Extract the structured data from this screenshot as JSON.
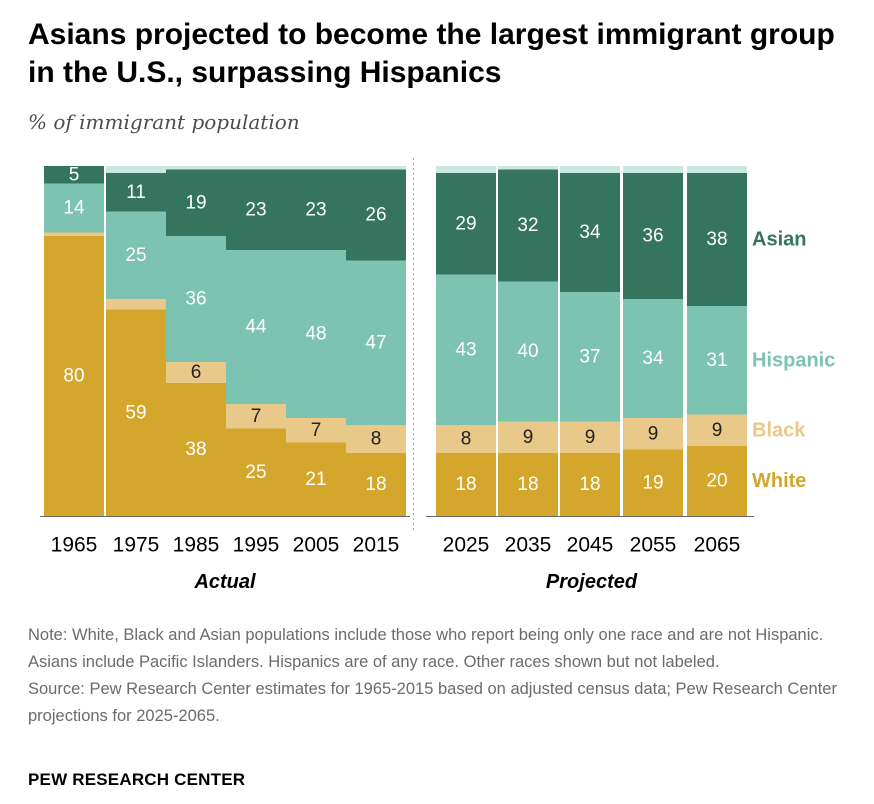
{
  "title": "Asians projected to become the largest immigrant group in the U.S., surpassing Hispanics",
  "subtitle": "% of immigrant population",
  "note": "Note: White, Black and Asian populations include those who report being only one race and are not Hispanic. Asians include Pacific Islanders. Hispanics are of any race. Other races shown but not labeled.",
  "source": "Source: Pew Research Center estimates for 1965-2015 based on adjusted census data; Pew Research Center projections for 2025-2065.",
  "brand": "PEW RESEARCH CENTER",
  "colors": {
    "white": "#d4a72c",
    "black": "#e8c989",
    "hispanic": "#7dc3b2",
    "asian": "#35745f",
    "other": "#c9e8e1",
    "label_light": "#ffffff",
    "label_dark": "#222222"
  },
  "chart_data": {
    "type": "bar",
    "stacked": true,
    "ylim": [
      0,
      100
    ],
    "groups": [
      {
        "label": "Actual",
        "categories": [
          "1965",
          "1975",
          "1985",
          "1995",
          "2005",
          "2015"
        ]
      },
      {
        "label": "Projected",
        "categories": [
          "2025",
          "2035",
          "2045",
          "2055",
          "2065"
        ]
      }
    ],
    "categories": [
      "1965",
      "1975",
      "1985",
      "1995",
      "2005",
      "2015",
      "2025",
      "2035",
      "2045",
      "2055",
      "2065"
    ],
    "series": [
      {
        "name": "White",
        "key": "white",
        "values": [
          80,
          59,
          38,
          25,
          21,
          18,
          18,
          18,
          18,
          19,
          20
        ]
      },
      {
        "name": "Black",
        "key": "black",
        "values": [
          1,
          3,
          6,
          7,
          7,
          8,
          8,
          9,
          9,
          9,
          9
        ]
      },
      {
        "name": "Hispanic",
        "key": "hispanic",
        "values": [
          14,
          25,
          36,
          44,
          48,
          47,
          43,
          40,
          37,
          34,
          31
        ]
      },
      {
        "name": "Asian",
        "key": "asian",
        "values": [
          5,
          11,
          19,
          23,
          23,
          26,
          29,
          32,
          34,
          36,
          38
        ]
      }
    ],
    "value_labels": {
      "White": [
        "80",
        "59",
        "38",
        "25",
        "21",
        "18",
        "18",
        "18",
        "18",
        "19",
        "20"
      ],
      "Black": [
        "",
        "",
        "6",
        "7",
        "7",
        "8",
        "8",
        "9",
        "9",
        "9",
        "9"
      ],
      "Hispanic": [
        "14",
        "25",
        "36",
        "44",
        "48",
        "47",
        "43",
        "40",
        "37",
        "34",
        "31"
      ],
      "Asian": [
        "5",
        "11",
        "19",
        "23",
        "23",
        "26",
        "29",
        "32",
        "34",
        "36",
        "38"
      ]
    },
    "legend": [
      "Asian",
      "Hispanic",
      "Black",
      "White"
    ],
    "legend_placement": "right, aligned with projected bars"
  }
}
